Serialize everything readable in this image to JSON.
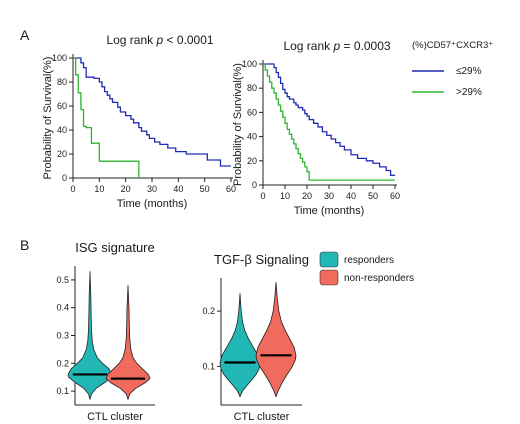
{
  "panel_letters": {
    "a": "A",
    "b": "B"
  },
  "km_legend": {
    "title": "(%)CD57⁺CXCR3⁺",
    "items": [
      {
        "label": "≤29%",
        "color": "#1f2db5"
      },
      {
        "label": ">29%",
        "color": "#31b531"
      }
    ]
  },
  "violin_legend": {
    "items": [
      {
        "label": "responders",
        "color": "#20b7b4"
      },
      {
        "label": "non-responders",
        "color": "#f06a5e"
      }
    ]
  },
  "chart_data": [
    {
      "type": "line",
      "title": "Log rank p < 0.0001",
      "title_parts": [
        "Log rank ",
        "p",
        " < 0.0001"
      ],
      "xlabel": "Time (months)",
      "ylabel": "Probability of Survival(%)",
      "xlim": [
        0,
        60
      ],
      "ylim": [
        0,
        100
      ],
      "xticks": [
        0,
        10,
        20,
        30,
        40,
        50,
        60
      ],
      "yticks": [
        0,
        20,
        40,
        60,
        80,
        100
      ],
      "step": true,
      "series": [
        {
          "name": "≤29%",
          "color": "#1f2db5",
          "x": [
            0,
            3,
            4,
            5,
            8,
            10,
            11,
            12,
            13,
            14,
            15,
            17,
            18,
            20,
            22,
            23,
            25,
            26,
            28,
            29,
            31,
            33,
            36,
            39,
            43,
            51,
            56,
            60
          ],
          "y": [
            100,
            96,
            92,
            84,
            83,
            80,
            76,
            72,
            69,
            66,
            63,
            59,
            55,
            52,
            49,
            46,
            42,
            39,
            36,
            33,
            30,
            28,
            25,
            22,
            20,
            15,
            10,
            10
          ]
        },
        {
          "name": ">29%",
          "color": "#31b531",
          "x": [
            0,
            1,
            2,
            3,
            4,
            5,
            7,
            10,
            12,
            15,
            25
          ],
          "y": [
            100,
            86,
            71,
            57,
            43,
            42,
            29,
            14,
            14,
            14,
            0
          ]
        }
      ]
    },
    {
      "type": "line",
      "title": "Log rank p = 0.0003",
      "title_parts": [
        "Log rank ",
        "p",
        " = 0.0003"
      ],
      "xlabel": "Time (months)",
      "ylabel": "Probability of Survival(%)",
      "xlim": [
        0,
        60
      ],
      "ylim": [
        0,
        100
      ],
      "xticks": [
        0,
        10,
        20,
        30,
        40,
        50,
        60
      ],
      "yticks": [
        0,
        20,
        40,
        60,
        80,
        100
      ],
      "step": true,
      "series": [
        {
          "name": "≤29%",
          "color": "#1f2db5",
          "x": [
            0,
            5,
            6,
            7,
            8,
            9,
            10,
            11,
            12,
            14,
            15,
            16,
            18,
            19,
            20,
            21,
            23,
            25,
            27,
            29,
            31,
            33,
            35,
            37,
            40,
            43,
            47,
            50,
            53,
            56,
            58,
            60
          ],
          "y": [
            100,
            97,
            93,
            89,
            84,
            79,
            76,
            73,
            71,
            68,
            66,
            64,
            62,
            59,
            57,
            54,
            51,
            48,
            44,
            41,
            38,
            35,
            32,
            29,
            25,
            22,
            20,
            18,
            15,
            12,
            8,
            8
          ]
        },
        {
          "name": ">29%",
          "color": "#31b531",
          "x": [
            0,
            1,
            2,
            3,
            4,
            5,
            6,
            7,
            8,
            9,
            10,
            11,
            12,
            13,
            14,
            15,
            16,
            17,
            18,
            19,
            20,
            21,
            60
          ],
          "y": [
            100,
            95,
            90,
            85,
            80,
            76,
            71,
            66,
            61,
            56,
            51,
            46,
            42,
            38,
            34,
            30,
            26,
            22,
            19,
            15,
            11,
            4,
            4
          ]
        }
      ]
    },
    {
      "type": "violin",
      "title": "ISG signature",
      "xlabel": "CTL cluster",
      "ylim": [
        0.05,
        0.55
      ],
      "yticks": [
        0.1,
        0.2,
        0.3,
        0.4,
        0.5
      ],
      "ytick_labels": [
        "0.1",
        "0.2",
        "0.3",
        "0.4",
        "0.5"
      ],
      "groups": [
        {
          "name": "responders",
          "color": "#20b7b4",
          "median": 0.16,
          "min": 0.07,
          "max": 0.53,
          "density": [
            [
              0.07,
              0.0
            ],
            [
              0.09,
              0.07
            ],
            [
              0.11,
              0.28
            ],
            [
              0.13,
              0.66
            ],
            [
              0.15,
              0.97
            ],
            [
              0.16,
              1.0
            ],
            [
              0.18,
              0.86
            ],
            [
              0.2,
              0.57
            ],
            [
              0.22,
              0.33
            ],
            [
              0.25,
              0.17
            ],
            [
              0.28,
              0.1
            ],
            [
              0.32,
              0.07
            ],
            [
              0.38,
              0.05
            ],
            [
              0.45,
              0.035
            ],
            [
              0.53,
              0.0
            ]
          ]
        },
        {
          "name": "non-responders",
          "color": "#f06a5e",
          "median": 0.145,
          "min": 0.07,
          "max": 0.48,
          "density": [
            [
              0.07,
              0.0
            ],
            [
              0.09,
              0.08
            ],
            [
              0.11,
              0.35
            ],
            [
              0.13,
              0.78
            ],
            [
              0.145,
              1.0
            ],
            [
              0.16,
              0.92
            ],
            [
              0.18,
              0.66
            ],
            [
              0.2,
              0.4
            ],
            [
              0.22,
              0.23
            ],
            [
              0.25,
              0.13
            ],
            [
              0.29,
              0.08
            ],
            [
              0.34,
              0.06
            ],
            [
              0.4,
              0.045
            ],
            [
              0.48,
              0.0
            ]
          ]
        }
      ]
    },
    {
      "type": "violin",
      "title": "TGF-β Signaling",
      "xlabel": "CTL cluster",
      "ylim": [
        0.03,
        0.26
      ],
      "yticks": [
        0.1,
        0.2
      ],
      "ytick_labels": [
        "0.1",
        "0.2"
      ],
      "groups": [
        {
          "name": "responders",
          "color": "#20b7b4",
          "median": 0.107,
          "min": 0.045,
          "max": 0.232,
          "density": [
            [
              0.045,
              0.0
            ],
            [
              0.055,
              0.12
            ],
            [
              0.065,
              0.34
            ],
            [
              0.075,
              0.58
            ],
            [
              0.085,
              0.8
            ],
            [
              0.095,
              0.95
            ],
            [
              0.107,
              1.0
            ],
            [
              0.12,
              0.9
            ],
            [
              0.135,
              0.66
            ],
            [
              0.15,
              0.42
            ],
            [
              0.165,
              0.24
            ],
            [
              0.18,
              0.13
            ],
            [
              0.2,
              0.06
            ],
            [
              0.232,
              0.0
            ]
          ]
        },
        {
          "name": "non-responders",
          "color": "#f06a5e",
          "median": 0.12,
          "min": 0.045,
          "max": 0.252,
          "density": [
            [
              0.045,
              0.0
            ],
            [
              0.055,
              0.1
            ],
            [
              0.07,
              0.3
            ],
            [
              0.085,
              0.55
            ],
            [
              0.1,
              0.82
            ],
            [
              0.112,
              0.97
            ],
            [
              0.12,
              1.0
            ],
            [
              0.135,
              0.9
            ],
            [
              0.15,
              0.68
            ],
            [
              0.165,
              0.46
            ],
            [
              0.18,
              0.28
            ],
            [
              0.2,
              0.14
            ],
            [
              0.225,
              0.06
            ],
            [
              0.252,
              0.0
            ]
          ]
        }
      ]
    }
  ]
}
